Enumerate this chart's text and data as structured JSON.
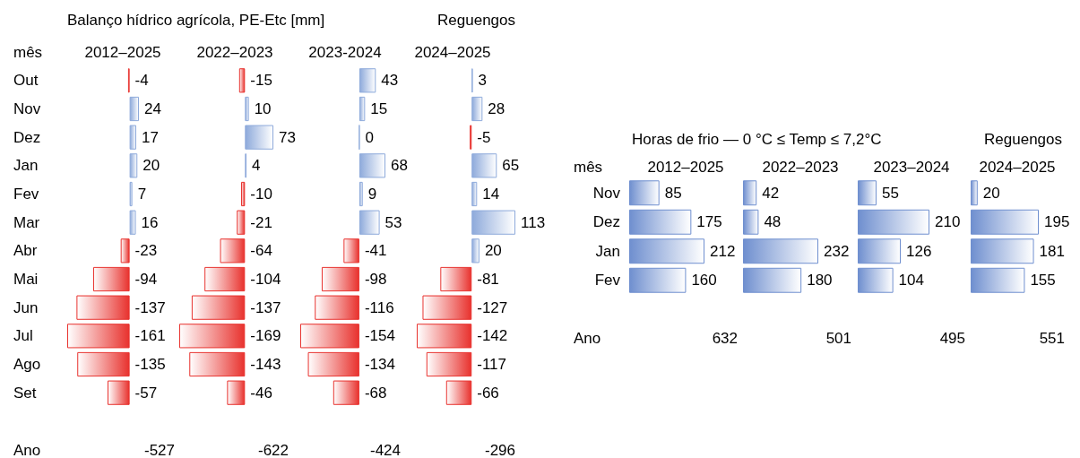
{
  "chart_data": [
    {
      "type": "bar",
      "orientation": "horizontal",
      "title": "2012–2025",
      "ylabel": "mês",
      "tick_labels": "y",
      "data_labels": true,
      "annotations": [
        "Balanço hídrico agrícola, PE-Etc [mm]",
        "Ano",
        "-527"
      ],
      "categories": [
        "Out",
        "Nov",
        "Dez",
        "Jan",
        "Fev",
        "Mar",
        "Abr",
        "Mai",
        "Jun",
        "Jul",
        "Ago",
        "Set"
      ],
      "values": [
        -4,
        24,
        17,
        20,
        7,
        16,
        -23,
        -94,
        -137,
        -161,
        -135,
        -57
      ],
      "colors": [
        "#e8322e",
        "#8eaadb",
        "#8eaadb",
        "#8eaadb",
        "#8eaadb",
        "#8eaadb",
        "#e8322e",
        "#e8322e",
        "#e8322e",
        "#e8322e",
        "#e8322e",
        "#e8322e"
      ]
    },
    {
      "type": "bar",
      "orientation": "horizontal",
      "title": "2022–2023",
      "data_labels": true,
      "annotations": [
        "-622"
      ],
      "categories": [
        null,
        null,
        null,
        null,
        null,
        null,
        null,
        null,
        null,
        null,
        null,
        null
      ],
      "values": [
        -15,
        10,
        73,
        4,
        -10,
        -21,
        -64,
        -104,
        -137,
        -169,
        -143,
        -46
      ],
      "colors": [
        "#e8322e",
        "#8eaadb",
        "#8eaadb",
        "#8eaadb",
        "#e8322e",
        "#e8322e",
        "#e8322e",
        "#e8322e",
        "#e8322e",
        "#e8322e",
        "#e8322e",
        "#e8322e"
      ]
    },
    {
      "type": "bar",
      "orientation": "horizontal",
      "title": "2023-2024",
      "data_labels": true,
      "annotations": [
        "-424"
      ],
      "categories": [
        null,
        null,
        null,
        null,
        null,
        null,
        null,
        null,
        null,
        null,
        null,
        null
      ],
      "values": [
        43,
        15,
        0,
        68,
        9,
        53,
        -41,
        -98,
        -116,
        -154,
        -134,
        -68
      ],
      "colors": [
        "#8eaadb",
        "#8eaadb",
        "#8eaadb",
        "#8eaadb",
        "#8eaadb",
        "#8eaadb",
        "#e8322e",
        "#e8322e",
        "#e8322e",
        "#e8322e",
        "#e8322e",
        "#e8322e"
      ]
    },
    {
      "type": "bar",
      "orientation": "horizontal",
      "title": "2024–2025",
      "data_labels": true,
      "annotations": [
        "Reguengos",
        "-296"
      ],
      "categories": [
        null,
        null,
        null,
        null,
        null,
        null,
        null,
        null,
        null,
        null,
        null,
        null
      ],
      "values": [
        3,
        28,
        -5,
        65,
        14,
        113,
        20,
        -81,
        -127,
        -142,
        -117,
        -66
      ],
      "colors": [
        "#8eaadb",
        "#8eaadb",
        "#e8322e",
        "#8eaadb",
        "#8eaadb",
        "#8eaadb",
        "#8eaadb",
        "#e8322e",
        "#e8322e",
        "#e8322e",
        "#e8322e",
        "#e8322e"
      ]
    },
    {
      "type": "bar",
      "orientation": "horizontal",
      "title": "2012–2025",
      "ylabel": "mês",
      "tick_labels": "y",
      "data_labels": true,
      "annotations": [
        "Horas de frio — 0 °C ≤ Temp ≤ 7,2°C",
        "Ano",
        "632"
      ],
      "categories": [
        "Nov",
        "Dez",
        "Jan",
        "Fev"
      ],
      "values": [
        85,
        175,
        212,
        160
      ],
      "colors": [
        "#6f8fcf",
        "#6f8fcf",
        "#6f8fcf",
        "#6f8fcf"
      ]
    },
    {
      "type": "bar",
      "orientation": "horizontal",
      "title": "2022–2023",
      "data_labels": true,
      "annotations": [
        "501"
      ],
      "categories": [
        null,
        null,
        null,
        null
      ],
      "values": [
        42,
        48,
        232,
        180
      ],
      "colors": [
        "#6f8fcf",
        "#6f8fcf",
        "#6f8fcf",
        "#6f8fcf"
      ]
    },
    {
      "type": "bar",
      "orientation": "horizontal",
      "title": "2023–2024",
      "data_labels": true,
      "annotations": [
        "495"
      ],
      "categories": [
        null,
        null,
        null,
        null
      ],
      "values": [
        55,
        210,
        126,
        104
      ],
      "colors": [
        "#6f8fcf",
        "#6f8fcf",
        "#6f8fcf",
        "#6f8fcf"
      ]
    },
    {
      "type": "bar",
      "orientation": "horizontal",
      "title": "2024–2025",
      "data_labels": true,
      "annotations": [
        "Reguengos",
        "551"
      ],
      "categories": [
        null,
        null,
        null,
        null
      ],
      "values": [
        20,
        195,
        181,
        155
      ],
      "colors": [
        "#6f8fcf",
        "#6f8fcf",
        "#6f8fcf",
        "#6f8fcf"
      ]
    }
  ]
}
